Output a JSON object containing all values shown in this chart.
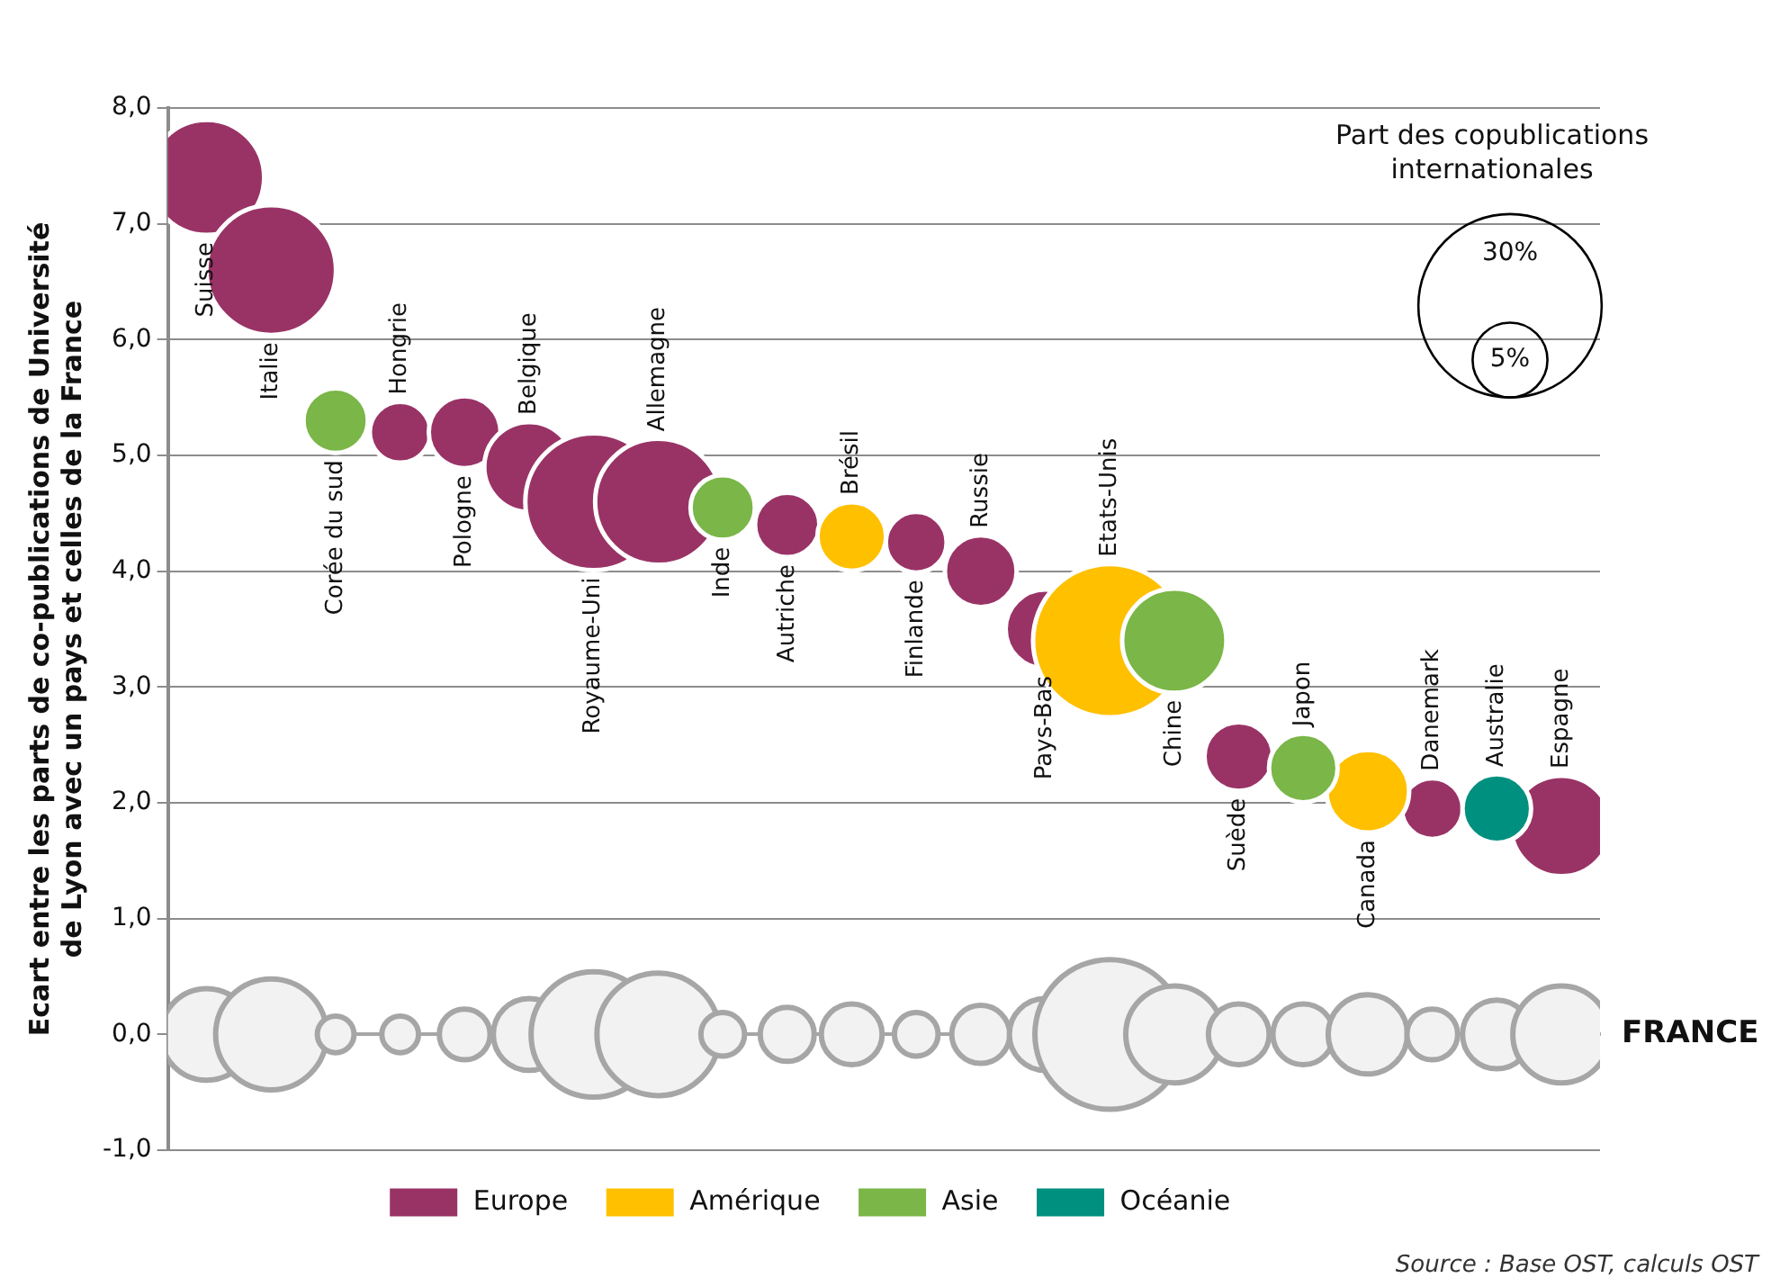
{
  "chart_data": {
    "type": "bubble",
    "ylabel": "Ecart entre les parts de co-publications de Université\nde Lyon avec un pays et celles de la France",
    "legend_title": "Part des copublications internationales",
    "categories": [
      "Suisse",
      "Italie",
      "Corée du sud",
      "Hongrie",
      "Pologne",
      "Belgique",
      "Royaume-Uni",
      "Allemagne",
      "Inde",
      "Autriche",
      "Brésil",
      "Finlande",
      "Russie",
      "Pays-Bas",
      "Etats-Unis",
      "Chine",
      "Suède",
      "Japon",
      "Canada",
      "Danemark",
      "Australie",
      "Espagne"
    ],
    "series": [
      {
        "name": "FRANCE",
        "color": "#f2f2f2",
        "values": [
          0,
          0,
          0,
          0,
          0,
          0,
          0,
          0,
          0,
          0,
          0,
          0,
          0,
          0,
          0,
          0,
          0,
          0,
          0,
          0,
          0,
          0
        ],
        "sizes": [
          7.5,
          11,
          1.2,
          1.2,
          2.3,
          4.6,
          14,
          13.4,
          1.7,
          2.6,
          3.3,
          1.7,
          3,
          4.6,
          20,
          8.4,
          3.3,
          3.3,
          5.6,
          2.3,
          4.2,
          8.4
        ]
      },
      {
        "name": "Europe",
        "color": "#993366",
        "values": [
          7.4,
          6.6,
          null,
          5.2,
          5.2,
          4.9,
          4.6,
          4.6,
          null,
          4.4,
          null,
          4.25,
          4.0,
          3.5,
          null,
          null,
          2.4,
          null,
          null,
          1.95,
          null,
          1.8
        ],
        "sizes": [
          11.8,
          15,
          null,
          3.3,
          4.6,
          7.2,
          16.7,
          14.2,
          null,
          3.7,
          null,
          3.3,
          4.6,
          5.6,
          null,
          null,
          4.2,
          null,
          null,
          3.3,
          null,
          9
        ]
      },
      {
        "name": "Amérique",
        "color": "#ffc000",
        "values": [
          null,
          null,
          null,
          null,
          null,
          null,
          null,
          null,
          null,
          null,
          4.3,
          null,
          null,
          null,
          3.4,
          null,
          null,
          null,
          2.1,
          null,
          null,
          null
        ],
        "sizes": [
          null,
          null,
          null,
          null,
          null,
          null,
          null,
          null,
          null,
          null,
          4.2,
          null,
          null,
          null,
          21,
          null,
          null,
          null,
          6.1,
          null,
          null,
          null
        ]
      },
      {
        "name": "Asie",
        "color": "#7ab648",
        "values": [
          null,
          null,
          5.3,
          null,
          null,
          null,
          null,
          null,
          4.55,
          null,
          null,
          null,
          null,
          null,
          null,
          3.4,
          null,
          2.3,
          null,
          null,
          null,
          null
        ],
        "sizes": [
          null,
          null,
          3.7,
          null,
          null,
          null,
          null,
          null,
          3.7,
          null,
          null,
          null,
          null,
          null,
          null,
          9.7,
          null,
          4.2,
          null,
          null,
          null,
          null
        ]
      },
      {
        "name": "Océanie",
        "color": "#009080",
        "values": [
          null,
          null,
          null,
          null,
          null,
          null,
          null,
          null,
          null,
          null,
          null,
          null,
          null,
          null,
          null,
          null,
          null,
          null,
          null,
          null,
          1.95,
          null
        ],
        "sizes": [
          null,
          null,
          null,
          null,
          null,
          null,
          null,
          null,
          null,
          null,
          null,
          null,
          null,
          null,
          null,
          null,
          null,
          null,
          null,
          null,
          4.2,
          null
        ]
      }
    ],
    "size_legend": [
      {
        "value": 30,
        "label": "30%"
      },
      {
        "value": 5,
        "label": "5%"
      }
    ],
    "ylim": [
      -1,
      8
    ],
    "yticks": [
      {
        "value": -1,
        "label": "-1,0"
      },
      {
        "value": 0,
        "label": "0,0"
      },
      {
        "value": 1,
        "label": "1,0"
      },
      {
        "value": 2,
        "label": "2,0"
      },
      {
        "value": 3,
        "label": "3,0"
      },
      {
        "value": 4,
        "label": "4,0"
      },
      {
        "value": 5,
        "label": "5,0"
      },
      {
        "value": 6,
        "label": "6,0"
      },
      {
        "value": 7,
        "label": "7,0"
      },
      {
        "value": 8,
        "label": "8,0"
      }
    ],
    "grid": "y",
    "legend": "bottom",
    "tick_labels": "y",
    "annotations": [
      "Source : Base OST, calculs OST"
    ]
  }
}
